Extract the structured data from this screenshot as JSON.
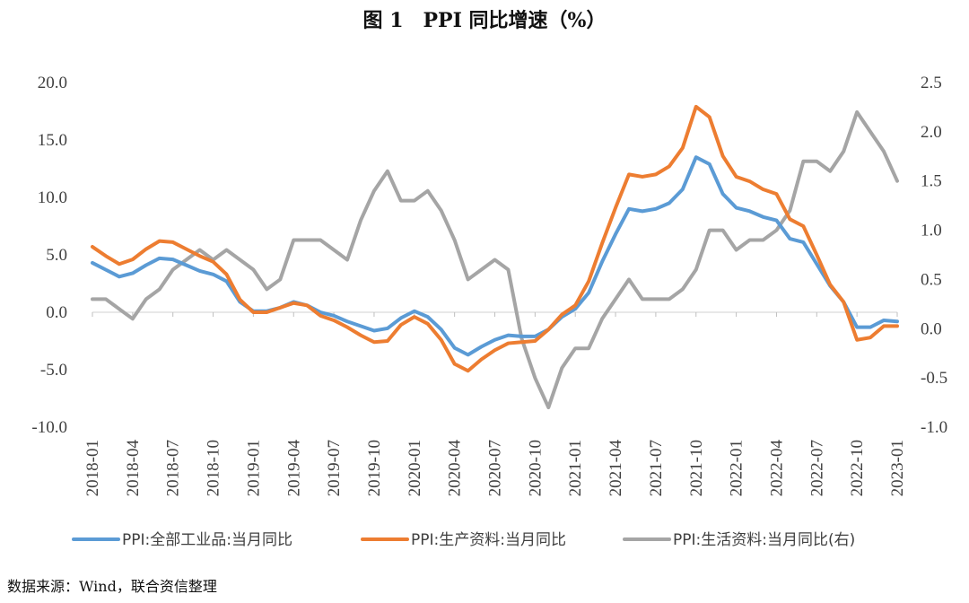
{
  "chart_data": {
    "type": "line",
    "title": "图 1　PPI 同比增速（%）",
    "source": "数据来源：Wind，联合资信整理",
    "left_ylim": [
      -10,
      20
    ],
    "left_ticks": [
      "-10.0",
      "-5.0",
      "0.0",
      "5.0",
      "10.0",
      "15.0",
      "20.0"
    ],
    "right_ylim": [
      -1.0,
      2.5
    ],
    "right_ticks": [
      "-1.0",
      "-0.5",
      "0.0",
      "0.5",
      "1.0",
      "1.5",
      "2.0",
      "2.5"
    ],
    "x": [
      "2018-01",
      "2018-02",
      "2018-03",
      "2018-04",
      "2018-05",
      "2018-06",
      "2018-07",
      "2018-08",
      "2018-09",
      "2018-10",
      "2018-11",
      "2018-12",
      "2019-01",
      "2019-02",
      "2019-03",
      "2019-04",
      "2019-05",
      "2019-06",
      "2019-07",
      "2019-08",
      "2019-09",
      "2019-10",
      "2019-11",
      "2019-12",
      "2020-01",
      "2020-02",
      "2020-03",
      "2020-04",
      "2020-05",
      "2020-06",
      "2020-07",
      "2020-08",
      "2020-09",
      "2020-10",
      "2020-11",
      "2020-12",
      "2021-01",
      "2021-02",
      "2021-03",
      "2021-04",
      "2021-05",
      "2021-06",
      "2021-07",
      "2021-08",
      "2021-09",
      "2021-10",
      "2021-11",
      "2021-12",
      "2022-01",
      "2022-02",
      "2022-03",
      "2022-04",
      "2022-05",
      "2022-06",
      "2022-07",
      "2022-08",
      "2022-09",
      "2022-10",
      "2022-11",
      "2022-12",
      "2023-01"
    ],
    "x_tick_labels": [
      "2018-01",
      "2018-04",
      "2018-07",
      "2018-10",
      "2019-01",
      "2019-04",
      "2019-07",
      "2019-10",
      "2020-01",
      "2020-04",
      "2020-07",
      "2020-10",
      "2021-01",
      "2021-04",
      "2021-07",
      "2021-10",
      "2022-01",
      "2022-04",
      "2022-07",
      "2022-10",
      "2023-01"
    ],
    "series": [
      {
        "name": "PPI:全部工业品:当月同比",
        "axis": "left",
        "color": "#5B9BD5",
        "values": [
          4.3,
          3.7,
          3.1,
          3.4,
          4.1,
          4.7,
          4.6,
          4.1,
          3.6,
          3.3,
          2.7,
          0.9,
          0.1,
          0.1,
          0.4,
          0.9,
          0.6,
          0.0,
          -0.3,
          -0.8,
          -1.2,
          -1.6,
          -1.4,
          -0.5,
          0.1,
          -0.4,
          -1.5,
          -3.1,
          -3.7,
          -3.0,
          -2.4,
          -2.0,
          -2.1,
          -2.1,
          -1.5,
          -0.4,
          0.3,
          1.7,
          4.4,
          6.8,
          9.0,
          8.8,
          9.0,
          9.5,
          10.7,
          13.5,
          12.9,
          10.3,
          9.1,
          8.8,
          8.3,
          8.0,
          6.4,
          6.1,
          4.2,
          2.3,
          0.9,
          -1.3,
          -1.3,
          -0.7,
          -0.8
        ]
      },
      {
        "name": "PPI:生产资料:当月同比",
        "axis": "left",
        "color": "#ED7D31",
        "values": [
          5.7,
          4.9,
          4.2,
          4.6,
          5.5,
          6.2,
          6.1,
          5.5,
          4.9,
          4.4,
          3.3,
          1.1,
          0.0,
          0.0,
          0.4,
          0.8,
          0.6,
          -0.3,
          -0.7,
          -1.3,
          -2.0,
          -2.6,
          -2.5,
          -1.1,
          -0.4,
          -1.0,
          -2.4,
          -4.5,
          -5.1,
          -4.1,
          -3.3,
          -2.7,
          -2.6,
          -2.5,
          -1.5,
          -0.2,
          0.6,
          2.7,
          6.0,
          9.1,
          12.0,
          11.8,
          12.0,
          12.7,
          14.3,
          17.9,
          17.0,
          13.6,
          11.8,
          11.4,
          10.7,
          10.3,
          8.1,
          7.5,
          5.0,
          2.4,
          0.9,
          -2.4,
          -2.2,
          -1.2,
          -1.2
        ]
      },
      {
        "name": "PPI:生活资料:当月同比(右)",
        "axis": "right",
        "color": "#A5A5A5",
        "values": [
          0.3,
          0.3,
          0.2,
          0.1,
          0.3,
          0.4,
          0.6,
          0.7,
          0.8,
          0.7,
          0.8,
          0.7,
          0.6,
          0.4,
          0.5,
          0.9,
          0.9,
          0.9,
          0.8,
          0.7,
          1.1,
          1.4,
          1.6,
          1.3,
          1.3,
          1.4,
          1.2,
          0.9,
          0.5,
          0.6,
          0.7,
          0.6,
          -0.1,
          -0.5,
          -0.8,
          -0.4,
          -0.2,
          -0.2,
          0.1,
          0.3,
          0.5,
          0.3,
          0.3,
          0.3,
          0.4,
          0.6,
          1.0,
          1.0,
          0.8,
          0.9,
          0.9,
          1.0,
          1.2,
          1.7,
          1.7,
          1.6,
          1.8,
          2.2,
          2.0,
          1.8,
          1.5
        ]
      }
    ],
    "grid": false,
    "legend_position": "bottom"
  }
}
